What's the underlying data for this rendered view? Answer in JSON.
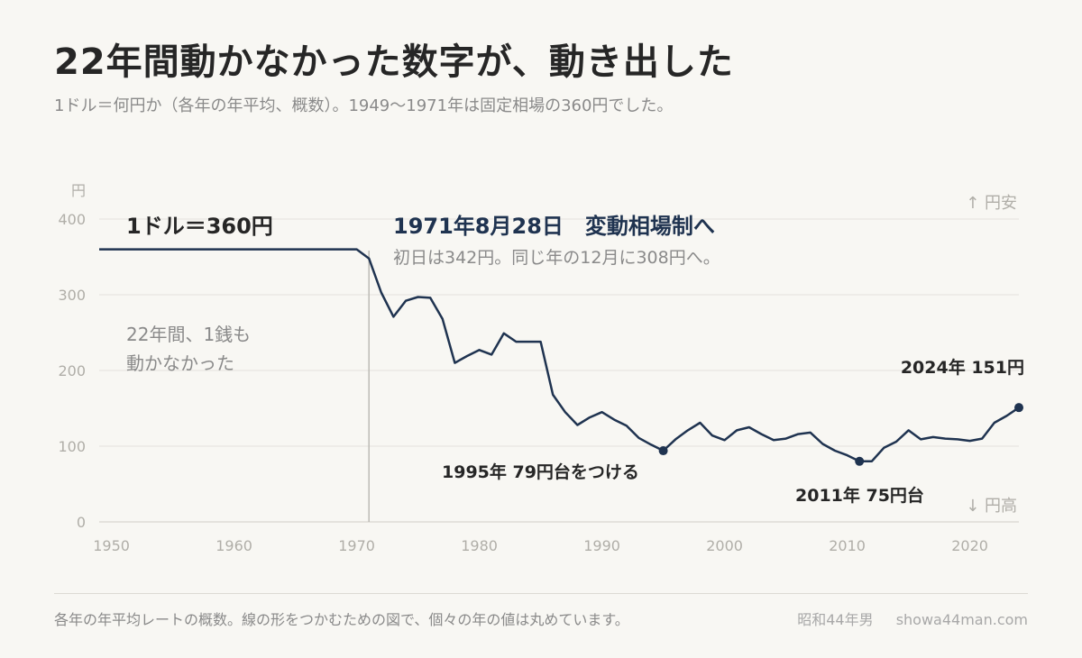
{
  "header": {
    "title": "22年間動かなかった数字が、動き出した",
    "subtitle": "1ドル＝何円か（各年の年平均、概数）。1949〜1971年は固定相場の360円でした。"
  },
  "footer": {
    "note": "各年の年平均レートの概数。線の形をつかむための図で、個々の年の値は丸めています。",
    "author": "昭和44年男",
    "site": "showa44man.com"
  },
  "chart_data": {
    "type": "line",
    "ylabel": "円",
    "ylim": [
      0,
      400
    ],
    "xlim": [
      1949,
      2024
    ],
    "yticks": [
      0,
      100,
      200,
      300,
      400
    ],
    "xticks": [
      1950,
      1960,
      1970,
      1980,
      1990,
      2000,
      2010,
      2020
    ],
    "direction_labels": {
      "top": "↑ 円安",
      "bottom": "↓ 円高"
    },
    "series": [
      {
        "points": [
          [
            1949,
            360
          ],
          [
            1970,
            360
          ],
          [
            1971,
            348
          ],
          [
            1972,
            303
          ],
          [
            1973,
            271
          ],
          [
            1974,
            292
          ],
          [
            1975,
            297
          ],
          [
            1976,
            296
          ],
          [
            1977,
            268
          ],
          [
            1978,
            210
          ],
          [
            1979,
            219
          ],
          [
            1980,
            227
          ],
          [
            1981,
            221
          ],
          [
            1982,
            249
          ],
          [
            1983,
            238
          ],
          [
            1984,
            238
          ],
          [
            1985,
            238
          ],
          [
            1986,
            168
          ],
          [
            1987,
            145
          ],
          [
            1988,
            128
          ],
          [
            1989,
            138
          ],
          [
            1990,
            145
          ],
          [
            1991,
            135
          ],
          [
            1992,
            127
          ],
          [
            1993,
            111
          ],
          [
            1994,
            102
          ],
          [
            1995,
            94
          ],
          [
            1996,
            109
          ],
          [
            1997,
            121
          ],
          [
            1998,
            131
          ],
          [
            1999,
            114
          ],
          [
            2000,
            108
          ],
          [
            2001,
            121
          ],
          [
            2002,
            125
          ],
          [
            2003,
            116
          ],
          [
            2004,
            108
          ],
          [
            2005,
            110
          ],
          [
            2006,
            116
          ],
          [
            2007,
            118
          ],
          [
            2008,
            103
          ],
          [
            2009,
            94
          ],
          [
            2010,
            88
          ],
          [
            2011,
            80
          ],
          [
            2012,
            80
          ],
          [
            2013,
            98
          ],
          [
            2014,
            106
          ],
          [
            2015,
            121
          ],
          [
            2016,
            109
          ],
          [
            2017,
            112
          ],
          [
            2018,
            110
          ],
          [
            2019,
            109
          ],
          [
            2020,
            107
          ],
          [
            2021,
            110
          ],
          [
            2022,
            131
          ],
          [
            2023,
            140
          ],
          [
            2024,
            151
          ]
        ]
      }
    ],
    "highlight_points": [
      1995,
      2011,
      2024
    ],
    "event_line_year": 1971,
    "annotations": [
      {
        "id": "fixed",
        "text": "1ドル＝360円",
        "style": "bold"
      },
      {
        "id": "event_title",
        "text": "1971年8月28日　変動相場制へ",
        "style": "accent"
      },
      {
        "id": "event_sub",
        "text": "初日は342円。同じ年の12月に308円へ。",
        "style": "muted"
      },
      {
        "id": "still1",
        "text": "22年間、1銭も",
        "style": "muted"
      },
      {
        "id": "still2",
        "text": "動かなかった",
        "style": "muted"
      },
      {
        "id": "p1995",
        "text": "1995年 79円台をつける",
        "style": "bold"
      },
      {
        "id": "p2011",
        "text": "2011年 75円台",
        "style": "bold"
      },
      {
        "id": "p2024",
        "text": "2024年 151円",
        "style": "bold"
      }
    ],
    "colors": {
      "line": "#1f3350",
      "accent": "#1f3350",
      "grid": "#e3e1dc",
      "axis": "#b0aea8"
    }
  }
}
